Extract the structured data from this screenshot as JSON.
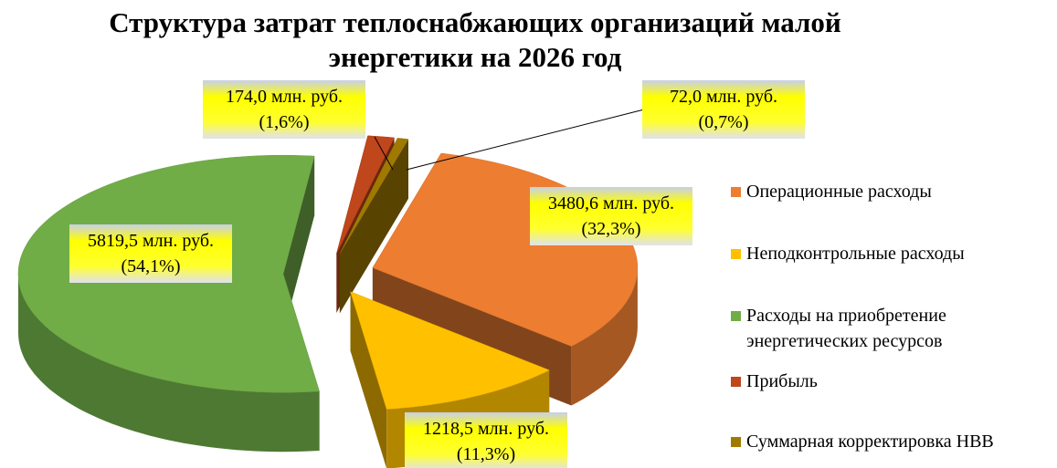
{
  "chart_data": {
    "type": "pie",
    "title": "Структура затрат теплоснабжающих организаций малой энергетики на 2026 год",
    "categories": [
      "Операционные расходы",
      "Неподконтрольные расходы",
      "Расходы на приобретение энергетических ресурсов",
      "Прибыль",
      "Суммарная корректировка НВВ"
    ],
    "values": [
      3480.6,
      1218.5,
      5819.5,
      174.0,
      72.0
    ],
    "value_labels": [
      "3480,6 млн. руб.",
      "1218,5 млн. руб.",
      "5819,5 млн. руб.",
      "174,0 млн. руб.",
      "72,0 млн. руб."
    ],
    "percents": [
      32.3,
      11.3,
      54.1,
      1.6,
      0.7
    ],
    "percent_labels": [
      "(32,3%)",
      "(11,3%)",
      "(54,1%)",
      "(1,6%)",
      "(0,7%)"
    ],
    "colors": [
      "#ed7d31",
      "#ffc000",
      "#70ad47",
      "#c0461b",
      "#a07a00"
    ],
    "legend": "right"
  }
}
